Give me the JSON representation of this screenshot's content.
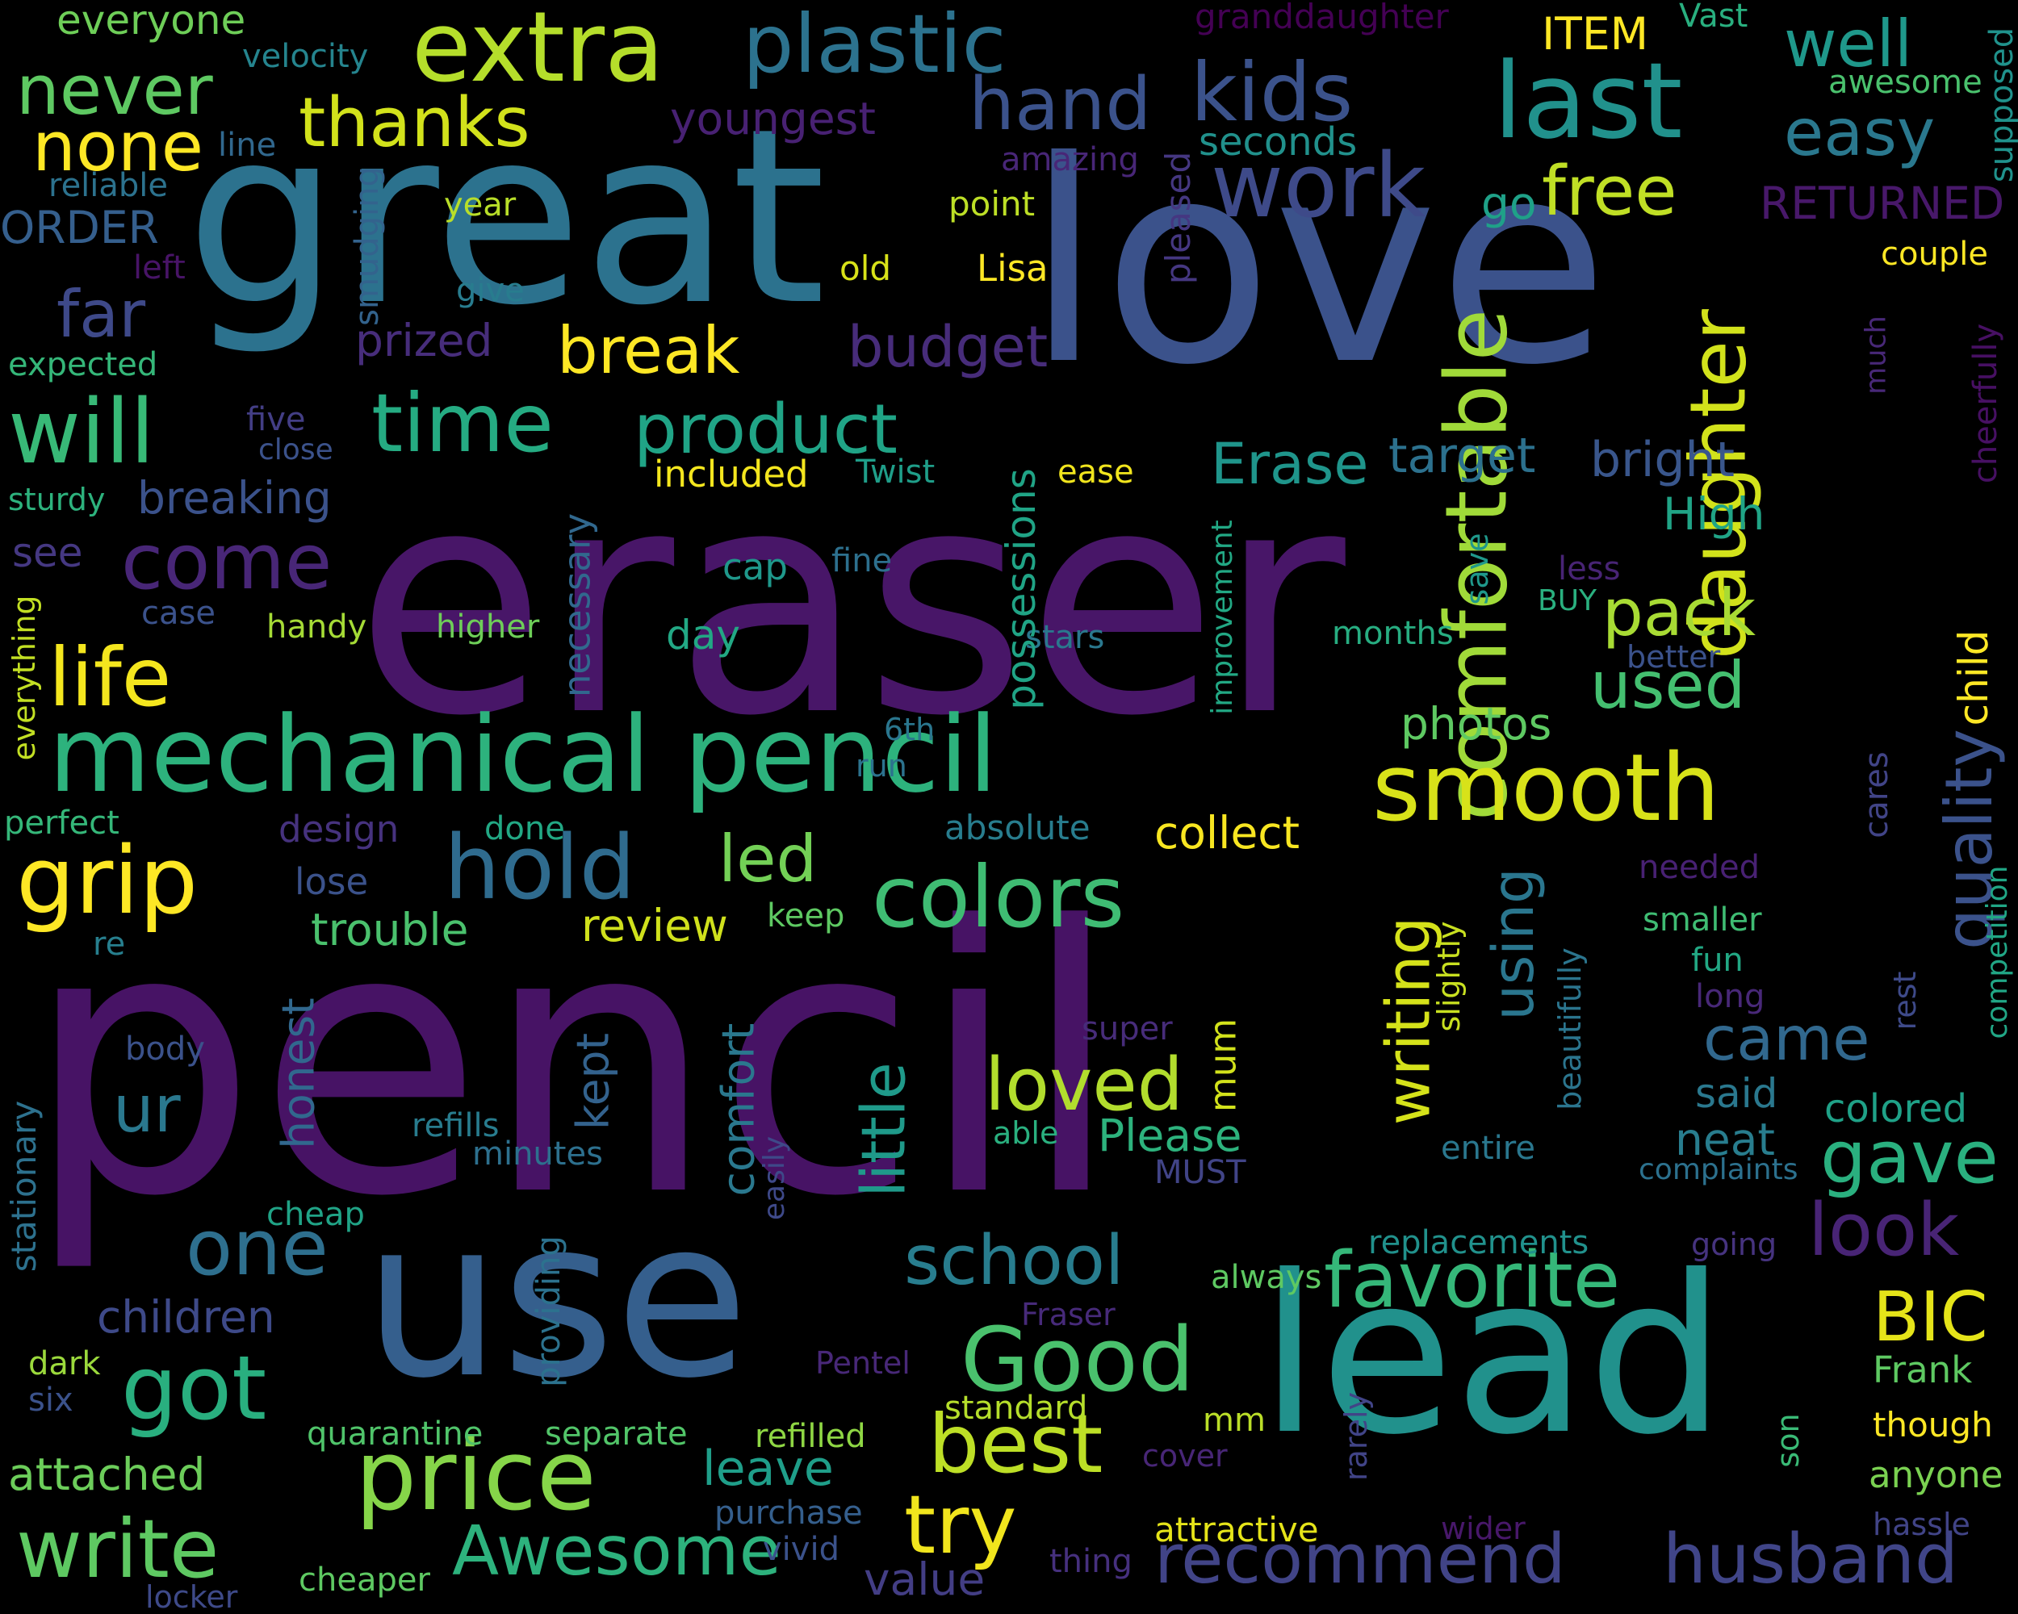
{
  "background": "#000000",
  "words": [
    {
      "text": "pencil",
      "color": "#471365"
    },
    {
      "text": "eraser",
      "color": "#481668"
    },
    {
      "text": "love",
      "color": "#3b528b"
    },
    {
      "text": "great",
      "color": "#2c728e"
    },
    {
      "text": "use",
      "color": "#355f8d"
    },
    {
      "text": "lead",
      "color": "#21918c"
    },
    {
      "text": "mechanical pencil",
      "color": "#2db27d"
    },
    {
      "text": "extra",
      "color": "#b5de2b"
    },
    {
      "text": "plastic",
      "color": "#2c728e"
    },
    {
      "text": "last",
      "color": "#21918c"
    },
    {
      "text": "kids",
      "color": "#3b528b"
    },
    {
      "text": "work",
      "color": "#3e4a89"
    },
    {
      "text": "comfortable",
      "color": "#a0da39"
    },
    {
      "text": "daughter",
      "color": "#d2e21b"
    },
    {
      "text": "smooth",
      "color": "#d8e219"
    },
    {
      "text": "colors",
      "color": "#3fbc73"
    },
    {
      "text": "hold",
      "color": "#2f6b8e"
    },
    {
      "text": "grip",
      "color": "#fde725"
    },
    {
      "text": "price",
      "color": "#86d549"
    },
    {
      "text": "Good",
      "color": "#4ac16d"
    },
    {
      "text": "favorite",
      "color": "#35b779"
    },
    {
      "text": "got",
      "color": "#29af7f"
    },
    {
      "text": "write",
      "color": "#5ec962"
    },
    {
      "text": "best",
      "color": "#bddf26"
    },
    {
      "text": "time",
      "color": "#25ab82"
    },
    {
      "text": "will",
      "color": "#38b977"
    },
    {
      "text": "life",
      "color": "#f4e61e"
    },
    {
      "text": "come",
      "color": "#482677"
    },
    {
      "text": "product",
      "color": "#20a486"
    },
    {
      "text": "hand",
      "color": "#3b528b"
    },
    {
      "text": "never",
      "color": "#5ec962"
    },
    {
      "text": "none",
      "color": "#fde725"
    },
    {
      "text": "thanks",
      "color": "#d2e21b"
    },
    {
      "text": "well",
      "color": "#1f988b"
    },
    {
      "text": "easy",
      "color": "#2a788e"
    },
    {
      "text": "free",
      "color": "#c0df25"
    },
    {
      "text": "Awesome",
      "color": "#2db27d"
    },
    {
      "text": "try",
      "color": "#f1e51d"
    },
    {
      "text": "recommend",
      "color": "#414487"
    },
    {
      "text": "husband",
      "color": "#404588"
    },
    {
      "text": "BIC",
      "color": "#e5e419"
    },
    {
      "text": "one",
      "color": "#2e6f8e"
    },
    {
      "text": "school",
      "color": "#287d8e"
    },
    {
      "text": "look",
      "color": "#482475"
    },
    {
      "text": "gave",
      "color": "#2ab07f"
    },
    {
      "text": "loved",
      "color": "#b2dd2d"
    },
    {
      "text": "quality",
      "color": "#3b528b"
    },
    {
      "text": "little",
      "color": "#1f9a8a"
    },
    {
      "text": "writing",
      "color": "#d5e21a"
    },
    {
      "text": "using",
      "color": "#2a768e"
    },
    {
      "text": "came",
      "color": "#31688e"
    },
    {
      "text": "used",
      "color": "#44bf70"
    },
    {
      "text": "pack",
      "color": "#a8db34"
    },
    {
      "text": "break",
      "color": "#fde725"
    },
    {
      "text": "budget",
      "color": "#472c7a"
    },
    {
      "text": "Erase",
      "color": "#1f958b"
    },
    {
      "text": "target",
      "color": "#2c718e"
    },
    {
      "text": "bright",
      "color": "#39568c"
    },
    {
      "text": "led",
      "color": "#73d056"
    },
    {
      "text": "far",
      "color": "#3e4989"
    },
    {
      "text": "breaking",
      "color": "#3b528b"
    },
    {
      "text": "ur",
      "color": "#2a788e"
    },
    {
      "text": "children",
      "color": "#3e4a89"
    },
    {
      "text": "attached",
      "color": "#6ccd5a"
    },
    {
      "text": "leave",
      "color": "#1f9e89"
    },
    {
      "text": "value",
      "color": "#433e85"
    },
    {
      "text": "review",
      "color": "#d0e11c"
    },
    {
      "text": "trouble",
      "color": "#4ac16d"
    },
    {
      "text": "collect",
      "color": "#f8e621"
    },
    {
      "text": "photos",
      "color": "#5ec962"
    },
    {
      "text": "High",
      "color": "#20a486"
    },
    {
      "text": "included",
      "color": "#f4e61e"
    },
    {
      "text": "Twist",
      "color": "#1f9e89"
    },
    {
      "text": "prized",
      "color": "#472d7b"
    },
    {
      "text": "youngest",
      "color": "#482173"
    },
    {
      "text": "ITEM",
      "color": "#fde725"
    },
    {
      "text": "Vast",
      "color": "#29af7f"
    },
    {
      "text": "granddaughter",
      "color": "#440154"
    },
    {
      "text": "everyone",
      "color": "#6ece58"
    },
    {
      "text": "velocity",
      "color": "#25848e"
    },
    {
      "text": "line",
      "color": "#31688e"
    },
    {
      "text": "reliable",
      "color": "#2c728e"
    },
    {
      "text": "ORDER",
      "color": "#355f8d"
    },
    {
      "text": "left",
      "color": "#481467"
    },
    {
      "text": "expected",
      "color": "#35b779"
    },
    {
      "text": "year",
      "color": "#b8de29"
    },
    {
      "text": "give",
      "color": "#287c8e"
    },
    {
      "text": "smudging",
      "color": "#33638d"
    },
    {
      "text": "amazing",
      "color": "#482677"
    },
    {
      "text": "point",
      "color": "#bddf26"
    },
    {
      "text": "old",
      "color": "#d8e219"
    },
    {
      "text": "Lisa",
      "color": "#fde725"
    },
    {
      "text": "seconds",
      "color": "#21918c"
    },
    {
      "text": "pleased",
      "color": "#453781"
    },
    {
      "text": "go",
      "color": "#1fa188"
    },
    {
      "text": "RETURNED",
      "color": "#48186a"
    },
    {
      "text": "awesome",
      "color": "#4ac16d"
    },
    {
      "text": "supposed",
      "color": "#20928c"
    },
    {
      "text": "couple",
      "color": "#fde725"
    },
    {
      "text": "cheerfully",
      "color": "#471063"
    },
    {
      "text": "much",
      "color": "#482878"
    },
    {
      "text": "child",
      "color": "#fde725"
    },
    {
      "text": "competition",
      "color": "#21a685"
    },
    {
      "text": "rest",
      "color": "#3e4a89"
    },
    {
      "text": "cares",
      "color": "#414487"
    },
    {
      "text": "five",
      "color": "#433e85"
    },
    {
      "text": "close",
      "color": "#3b528b"
    },
    {
      "text": "sturdy",
      "color": "#2db27d"
    },
    {
      "text": "see",
      "color": "#453882"
    },
    {
      "text": "case",
      "color": "#3b528b"
    },
    {
      "text": "handy",
      "color": "#a5db36"
    },
    {
      "text": "higher",
      "color": "#6ece58"
    },
    {
      "text": "cap",
      "color": "#1f988b"
    },
    {
      "text": "fine",
      "color": "#2d708e"
    },
    {
      "text": "day",
      "color": "#22a884"
    },
    {
      "text": "ease",
      "color": "#f1e51d"
    },
    {
      "text": "stars",
      "color": "#2a788e"
    },
    {
      "text": "months",
      "color": "#27ad81"
    },
    {
      "text": "less",
      "color": "#482475"
    },
    {
      "text": "BUY",
      "color": "#2ab07f"
    },
    {
      "text": "better",
      "color": "#3b528b"
    },
    {
      "text": "save",
      "color": "#1f988b"
    },
    {
      "text": "improvement",
      "color": "#22a884"
    },
    {
      "text": "necessary",
      "color": "#31688e"
    },
    {
      "text": "possessions",
      "color": "#20a486"
    },
    {
      "text": "everything",
      "color": "#c2df23"
    },
    {
      "text": "perfect",
      "color": "#35b779"
    },
    {
      "text": "design",
      "color": "#46327e"
    },
    {
      "text": "done",
      "color": "#22a884"
    },
    {
      "text": "absolute",
      "color": "#287d8e"
    },
    {
      "text": "lose",
      "color": "#3b528b"
    },
    {
      "text": "re",
      "color": "#277f8e"
    },
    {
      "text": "keep",
      "color": "#5ec962"
    },
    {
      "text": "6th",
      "color": "#2a768e"
    },
    {
      "text": "run",
      "color": "#2c728e"
    },
    {
      "text": "needed",
      "color": "#482173"
    },
    {
      "text": "smaller",
      "color": "#3fbc73"
    },
    {
      "text": "fun",
      "color": "#22a884"
    },
    {
      "text": "long",
      "color": "#482878"
    },
    {
      "text": "slightly",
      "color": "#c8e020"
    },
    {
      "text": "beautifully",
      "color": "#2b758e"
    },
    {
      "text": "said",
      "color": "#2a788e"
    },
    {
      "text": "neat",
      "color": "#287d8e"
    },
    {
      "text": "colored",
      "color": "#1fa187"
    },
    {
      "text": "complaints",
      "color": "#2c718e"
    },
    {
      "text": "body",
      "color": "#3b528b"
    },
    {
      "text": "honest",
      "color": "#31688e"
    },
    {
      "text": "kept",
      "color": "#33628d"
    },
    {
      "text": "comfort",
      "color": "#2a788e"
    },
    {
      "text": "mum",
      "color": "#d2e21b"
    },
    {
      "text": "super",
      "color": "#472c7a"
    },
    {
      "text": "refills",
      "color": "#287c8e"
    },
    {
      "text": "minutes",
      "color": "#2d708e"
    },
    {
      "text": "able",
      "color": "#2ab07f"
    },
    {
      "text": "Please",
      "color": "#2db27d"
    },
    {
      "text": "MUST",
      "color": "#414487"
    },
    {
      "text": "entire",
      "color": "#2a778e"
    },
    {
      "text": "easily",
      "color": "#3e4989"
    },
    {
      "text": "stationary",
      "color": "#2d718e"
    },
    {
      "text": "cheap",
      "color": "#20a386"
    },
    {
      "text": "providing",
      "color": "#2c728e"
    },
    {
      "text": "always",
      "color": "#5ec962"
    },
    {
      "text": "replacements",
      "color": "#21918c"
    },
    {
      "text": "going",
      "color": "#46337f"
    },
    {
      "text": "Fraser",
      "color": "#472a7a"
    },
    {
      "text": "Pentel",
      "color": "#482878"
    },
    {
      "text": "Frank",
      "color": "#5ec962"
    },
    {
      "text": "dark",
      "color": "#9bd93c"
    },
    {
      "text": "six",
      "color": "#3b528b"
    },
    {
      "text": "quarantine",
      "color": "#50c46a"
    },
    {
      "text": "separate",
      "color": "#52c569"
    },
    {
      "text": "refilled",
      "color": "#8fd744"
    },
    {
      "text": "standard",
      "color": "#b5de2b"
    },
    {
      "text": "mm",
      "color": "#bade28"
    },
    {
      "text": "cover",
      "color": "#482677"
    },
    {
      "text": "rarely",
      "color": "#414487"
    },
    {
      "text": "son",
      "color": "#3aba76"
    },
    {
      "text": "though",
      "color": "#fde725"
    },
    {
      "text": "anyone",
      "color": "#7ad151"
    },
    {
      "text": "hassle",
      "color": "#414487"
    },
    {
      "text": "purchase",
      "color": "#355f8d"
    },
    {
      "text": "vivid",
      "color": "#3b528b"
    },
    {
      "text": "attractive",
      "color": "#e5e419"
    },
    {
      "text": "wider",
      "color": "#48186a"
    },
    {
      "text": "thing",
      "color": "#46307e"
    },
    {
      "text": "cheaper",
      "color": "#5ec962"
    },
    {
      "text": "locker",
      "color": "#3e4a89"
    }
  ]
}
